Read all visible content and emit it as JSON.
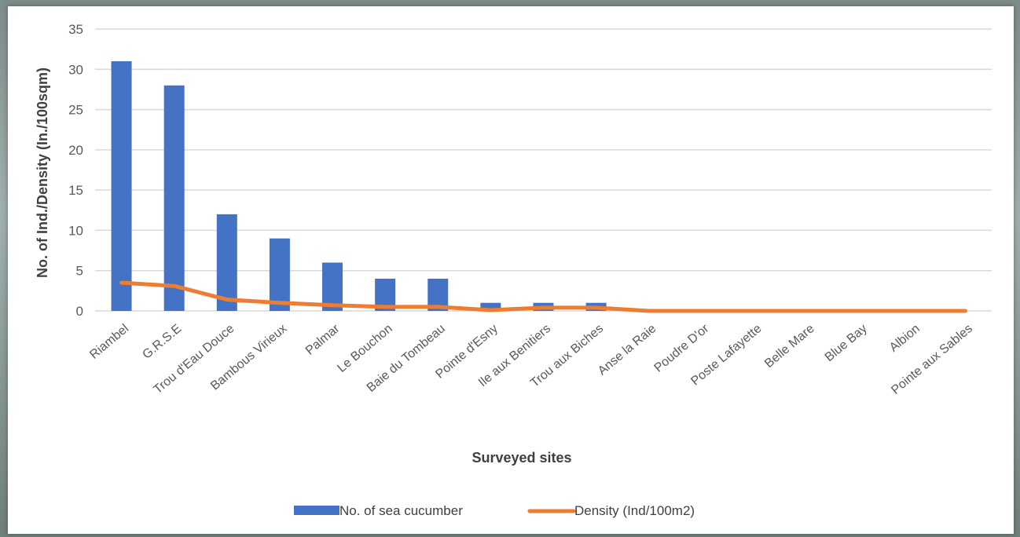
{
  "chart_data": {
    "type": "bar",
    "categories": [
      "Riambel",
      "G.R.S.E",
      "Trou d'Eau Douce",
      "Bambous Virieux",
      "Palmar",
      "Le Bouchon",
      "Baie du Tombeau",
      "Pointe d'Esny",
      "Ile aux Benitiers",
      "Trou aux Biches",
      "Anse la Raie",
      "Poudre D'or",
      "Poste Lafayette",
      "Belle Mare",
      "Blue Bay",
      "Albion",
      "Pointe aux Sables"
    ],
    "series": [
      {
        "name": "No. of sea cucumber",
        "type": "bar",
        "color": "#4472C4",
        "values": [
          31,
          28,
          12,
          9,
          6,
          4,
          4,
          1,
          1,
          1,
          0,
          0,
          0,
          0,
          0,
          0,
          0
        ]
      },
      {
        "name": "Density (Ind/100m2)",
        "type": "line",
        "color": "#ED7D31",
        "values": [
          3.5,
          3.1,
          1.4,
          1.0,
          0.7,
          0.5,
          0.5,
          0.1,
          0.4,
          0.4,
          0,
          0,
          0,
          0,
          0,
          0,
          0
        ]
      }
    ],
    "xlabel": "Surveyed sites",
    "ylabel": "No. of Ind./Density  (In./100sqm)",
    "ylim": [
      0,
      35
    ],
    "yticks": [
      0,
      5,
      10,
      15,
      20,
      25,
      30,
      35
    ],
    "grid": true,
    "legend_position": "bottom"
  }
}
